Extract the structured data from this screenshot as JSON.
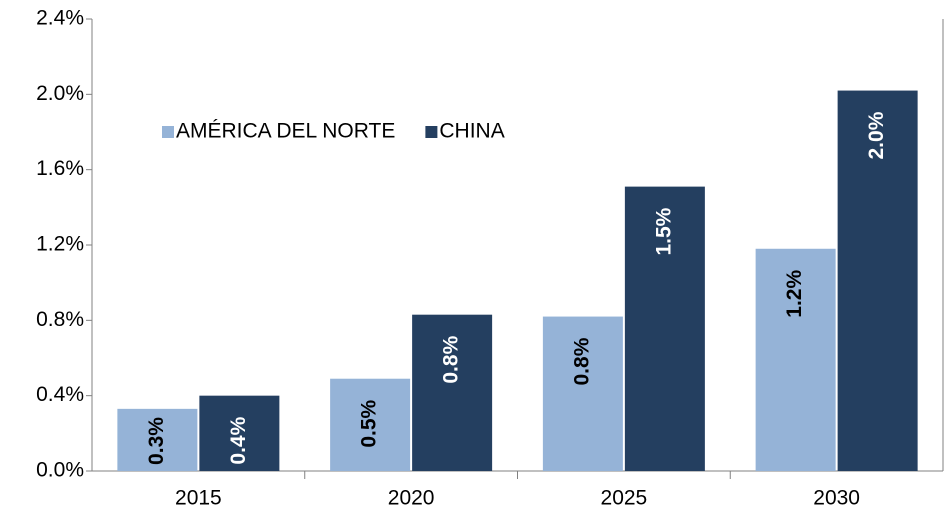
{
  "chart_data": {
    "type": "bar",
    "categories": [
      "2015",
      "2020",
      "2025",
      "2030"
    ],
    "series": [
      {
        "name": "AMÉRICA DEL NORTE",
        "color": "#95b3d7",
        "values": [
          0.33,
          0.49,
          0.82,
          1.18
        ],
        "value_labels": [
          "0.3%",
          "0.5%",
          "0.8%",
          "1.2%"
        ],
        "label_color": "#000000"
      },
      {
        "name": "CHINA",
        "color": "#243f60",
        "values": [
          0.4,
          0.83,
          1.51,
          2.02
        ],
        "value_labels": [
          "0.4%",
          "0.8%",
          "1.5%",
          "2.0%"
        ],
        "label_color": "#ffffff"
      }
    ],
    "ylim": [
      0,
      2.4
    ],
    "yticks": [
      {
        "value": 0,
        "label": "0.0%"
      },
      {
        "value": 0.4,
        "label": "0.4%"
      },
      {
        "value": 0.8,
        "label": "0.8%"
      },
      {
        "value": 1.2,
        "label": "1.2%"
      },
      {
        "value": 1.6,
        "label": "1.6%"
      },
      {
        "value": 2.0,
        "label": "2.0%"
      },
      {
        "value": 2.4,
        "label": "2.4%"
      }
    ],
    "grid": false,
    "legend": "upper-left"
  }
}
